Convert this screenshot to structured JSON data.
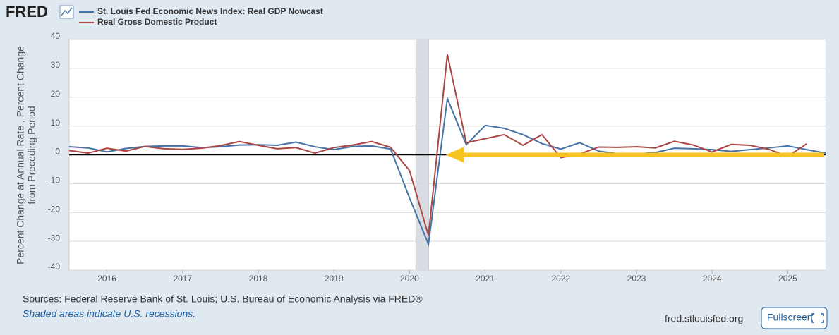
{
  "chart_data": {
    "type": "line",
    "logo": "FRED",
    "ylabel": [
      "Percent Change at Annual Rate , Percent Change",
      "from Preceding Period"
    ],
    "series": [
      {
        "name": "St. Louis Fed Economic News Index: Real GDP Nowcast",
        "color": "#4572a7",
        "x": [
          2015.5,
          2015.75,
          2016,
          2016.25,
          2016.5,
          2016.75,
          2017,
          2017.25,
          2017.5,
          2017.75,
          2018,
          2018.25,
          2018.5,
          2018.75,
          2019,
          2019.25,
          2019.5,
          2019.75,
          2020,
          2020.25,
          2020.5,
          2020.75,
          2021,
          2021.25,
          2021.5,
          2021.75,
          2022,
          2022.25,
          2022.5,
          2022.75,
          2023,
          2023.25,
          2023.5,
          2023.75,
          2024,
          2024.25,
          2024.5,
          2024.75,
          2025,
          2025.25,
          2025.5
        ],
        "values": [
          2.8,
          2.4,
          1.0,
          2.2,
          2.9,
          3.1,
          3.1,
          2.5,
          2.8,
          3.4,
          3.5,
          3.3,
          4.4,
          2.8,
          1.8,
          2.9,
          3.1,
          2.0,
          -15,
          -31.0,
          19.5,
          3.5,
          10.2,
          9.2,
          7.0,
          3.9,
          2.0,
          4.2,
          1.3,
          0.4,
          0.3,
          0.8,
          2.3,
          2.1,
          1.8,
          1.2,
          1.8,
          2.4,
          3.1,
          1.8,
          0.6
        ]
      },
      {
        "name": "Real Gross Domestic Product",
        "color": "#aa4643",
        "x": [
          2015.5,
          2015.75,
          2016,
          2016.25,
          2016.5,
          2016.75,
          2017,
          2017.25,
          2017.5,
          2017.75,
          2018,
          2018.25,
          2018.5,
          2018.75,
          2019,
          2019.25,
          2019.5,
          2019.75,
          2020,
          2020.25,
          2020.5,
          2020.75,
          2021,
          2021.25,
          2021.5,
          2021.75,
          2022,
          2022.25,
          2022.5,
          2022.75,
          2023,
          2023.25,
          2023.5,
          2023.75,
          2024,
          2024.25,
          2024.5,
          2024.75,
          2025,
          2025.25
        ],
        "values": [
          1.5,
          0.6,
          2.3,
          1.3,
          2.9,
          2.1,
          1.9,
          2.3,
          3.2,
          4.6,
          3.3,
          2.1,
          2.5,
          0.6,
          2.5,
          3.4,
          4.6,
          2.6,
          -5.5,
          -28.0,
          34.8,
          4.2,
          5.6,
          7.0,
          3.3,
          7.0,
          -1.0,
          0.3,
          2.7,
          2.6,
          2.8,
          2.4,
          4.7,
          3.4,
          1.0,
          3.6,
          3.3,
          1.9,
          -0.5,
          3.8
        ]
      }
    ],
    "recessions": [
      [
        2020.083,
        2020.25
      ]
    ],
    "xlim": [
      2015.5,
      2025.5
    ],
    "xticks": [
      2016,
      2017,
      2018,
      2019,
      2020,
      2021,
      2022,
      2023,
      2024,
      2025
    ],
    "ylim": [
      -40,
      40
    ],
    "yticks": [
      40,
      30,
      20,
      10,
      0,
      -10,
      -20,
      -30,
      -40
    ],
    "grid": true,
    "sources": "Sources: Federal Reserve Bank of St. Louis; U.S. Bureau of Economic Analysis via FRED®",
    "note": "Shaded areas indicate U.S. recessions.",
    "url": "fred.stlouisfed.org",
    "button": "Fullscreen"
  }
}
